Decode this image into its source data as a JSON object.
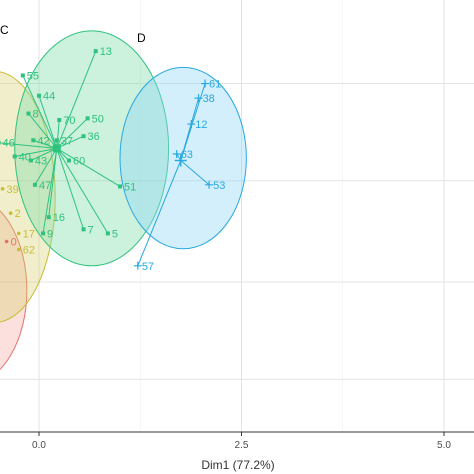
{
  "chart_data": {
    "type": "scatter",
    "xlabel": "Dim1 (77.2%)",
    "ylabel": "",
    "xlim": [
      -0.5,
      5.3
    ],
    "ylim": [
      -2.4,
      3.15
    ],
    "x_ticks": [
      "0.0",
      "2.5",
      "5.0"
    ],
    "x_tick_values": [
      0,
      2.5,
      5
    ],
    "y_grid_values": [
      -1.2,
      0,
      1.25,
      2.45
    ],
    "grid": "on",
    "groups": [
      {
        "name": "C",
        "color": "#2ec27e",
        "marker": "square",
        "centroid": {
          "x": 0.22,
          "y": 1.65
        },
        "ellipse": {
          "cx": 0.65,
          "cy": 1.65,
          "rx": 0.95,
          "ry": 1.45
        },
        "points": [
          {
            "label": "13",
            "x": 0.7,
            "y": 2.85
          },
          {
            "label": "55",
            "x": -0.2,
            "y": 2.55
          },
          {
            "label": "44",
            "x": 0.0,
            "y": 2.3
          },
          {
            "label": "8",
            "x": -0.13,
            "y": 2.08
          },
          {
            "label": "70",
            "x": 0.25,
            "y": 2.0
          },
          {
            "label": "50",
            "x": 0.6,
            "y": 2.02
          },
          {
            "label": "36",
            "x": 0.55,
            "y": 1.8
          },
          {
            "label": "42",
            "x": -0.07,
            "y": 1.75
          },
          {
            "label": "37",
            "x": 0.22,
            "y": 1.75
          },
          {
            "label": "46",
            "x": -0.5,
            "y": 1.72
          },
          {
            "label": "40",
            "x": -0.3,
            "y": 1.55
          },
          {
            "label": "60",
            "x": 0.37,
            "y": 1.5
          },
          {
            "label": "43",
            "x": -0.1,
            "y": 1.5
          },
          {
            "label": "51",
            "x": 1.0,
            "y": 1.18
          },
          {
            "label": "47",
            "x": -0.05,
            "y": 1.2
          },
          {
            "label": "16",
            "x": 0.12,
            "y": 0.8
          },
          {
            "label": "7",
            "x": 0.55,
            "y": 0.65
          },
          {
            "label": "5",
            "x": 0.85,
            "y": 0.6
          },
          {
            "label": "9",
            "x": 0.05,
            "y": 0.6
          }
        ]
      },
      {
        "name": "D",
        "color": "#29a8e0",
        "marker": "plus",
        "centroid": {
          "x": 1.75,
          "y": 1.5
        },
        "ellipse": {
          "cx": 1.78,
          "cy": 1.53,
          "rx": 0.78,
          "ry": 1.12
        },
        "points": [
          {
            "label": "61",
            "x": 2.05,
            "y": 2.45
          },
          {
            "label": "38",
            "x": 1.97,
            "y": 2.27
          },
          {
            "label": "12",
            "x": 1.88,
            "y": 1.95
          },
          {
            "label": "63",
            "x": 1.7,
            "y": 1.58
          },
          {
            "label": "53",
            "x": 2.1,
            "y": 1.2
          },
          {
            "label": "57",
            "x": 1.22,
            "y": 0.2
          }
        ]
      },
      {
        "name": "",
        "color": "#c8bd34",
        "marker": "circle",
        "points": [
          {
            "label": "39",
            "x": -0.45,
            "y": 1.15
          },
          {
            "label": "2",
            "x": -0.35,
            "y": 0.85
          },
          {
            "label": "17",
            "x": -0.25,
            "y": 0.6
          },
          {
            "label": "62",
            "x": -0.25,
            "y": 0.4
          }
        ]
      },
      {
        "name": "",
        "color": "#e5706b",
        "marker": "triangle",
        "points": [
          {
            "label": "0",
            "x": -0.4,
            "y": 0.5
          }
        ]
      }
    ]
  }
}
